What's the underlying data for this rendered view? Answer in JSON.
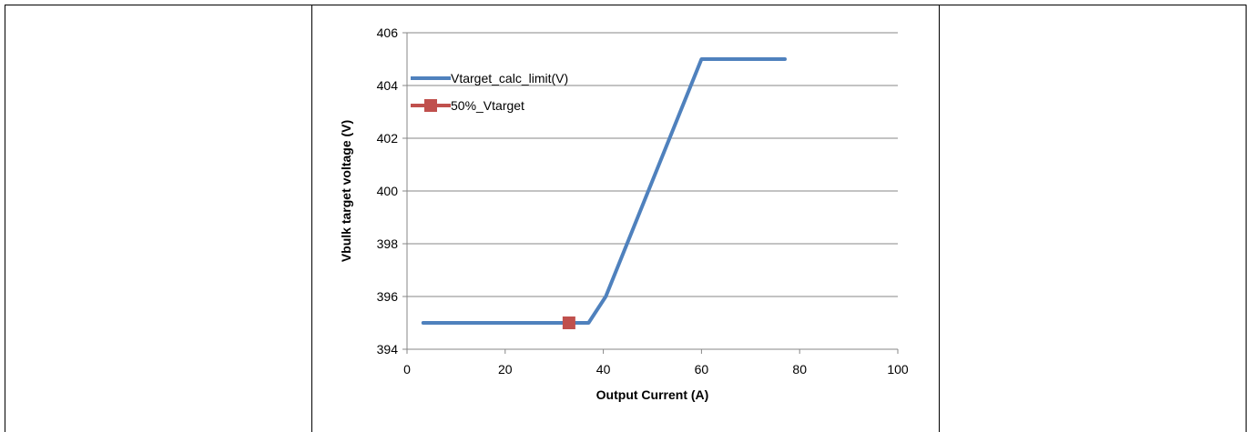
{
  "chart_data": {
    "type": "line",
    "title": "",
    "xlabel": "Output Current (A)",
    "ylabel": "Vbulk target voltage (V)",
    "xlim": [
      0,
      100
    ],
    "ylim": [
      394,
      406
    ],
    "xticks": [
      0,
      20,
      40,
      60,
      80,
      100
    ],
    "yticks": [
      394,
      396,
      398,
      400,
      402,
      404,
      406
    ],
    "grid": "horizontal",
    "legend_position": "left",
    "series": [
      {
        "name": "Vtarget_calc_limit(V)",
        "color": "#4F81BD",
        "marker": "none",
        "x": [
          3.3,
          37,
          40.5,
          60,
          63,
          77
        ],
        "y": [
          395,
          395,
          396,
          405,
          405,
          405
        ]
      },
      {
        "name": "50%_Vtarget",
        "color": "#C0504D",
        "marker": "square",
        "x": [
          33
        ],
        "y": [
          395
        ]
      }
    ]
  }
}
